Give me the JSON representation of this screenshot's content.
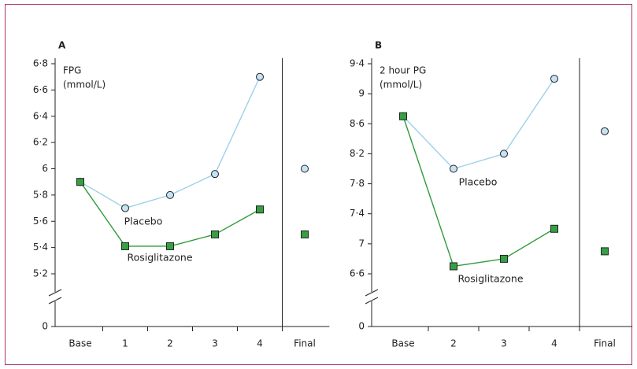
{
  "chart_data": [
    {
      "type": "line",
      "panel": "A",
      "ylabel": [
        "FPG",
        "(mmol/L)"
      ],
      "categories": [
        "Base",
        "1",
        "2",
        "3",
        "4",
        "Final"
      ],
      "series": [
        {
          "name": "Placebo",
          "color": "#9fd0ec",
          "marker": "circle",
          "values": [
            5.9,
            5.7,
            5.8,
            5.96,
            6.7,
            6.0
          ]
        },
        {
          "name": "Rosiglitazone",
          "color": "#2e9b3a",
          "marker": "square",
          "values": [
            5.9,
            5.41,
            5.41,
            5.5,
            5.69,
            5.5
          ]
        }
      ],
      "ylim": [
        5.2,
        6.8
      ],
      "axis_break": true,
      "yticks": [
        0,
        {
          "value": 5.2,
          "label": "5·2"
        },
        {
          "value": 5.4,
          "label": "5·4"
        },
        {
          "value": 5.6,
          "label": "5·6"
        },
        {
          "value": 5.8,
          "label": "5·8"
        },
        6,
        {
          "value": 6.2,
          "label": "6·2"
        },
        {
          "value": 6.4,
          "label": "6·4"
        },
        {
          "value": 6.6,
          "label": "6·6"
        },
        {
          "value": 6.8,
          "label": "6·8"
        }
      ]
    },
    {
      "type": "line",
      "panel": "B",
      "ylabel": [
        "2 hour PG",
        "(mmol/L)"
      ],
      "categories": [
        "Base",
        "2",
        "3",
        "4",
        "Final"
      ],
      "series": [
        {
          "name": "Placebo",
          "color": "#9fd0ec",
          "marker": "circle",
          "values": [
            8.7,
            8.0,
            8.2,
            9.2,
            8.5
          ]
        },
        {
          "name": "Rosiglitazone",
          "color": "#2e9b3a",
          "marker": "square",
          "values": [
            8.7,
            6.7,
            6.8,
            7.2,
            6.9
          ]
        }
      ],
      "ylim": [
        6.6,
        9.4
      ],
      "axis_break": true,
      "yticks": [
        0,
        {
          "value": 6.6,
          "label": "6·6"
        },
        7,
        {
          "value": 7.4,
          "label": "7·4"
        },
        {
          "value": 7.8,
          "label": "7·8"
        },
        {
          "value": 8.2,
          "label": "8·2"
        },
        {
          "value": 8.6,
          "label": "8·6"
        },
        9,
        {
          "value": 9.4,
          "label": "9·4"
        }
      ]
    }
  ]
}
